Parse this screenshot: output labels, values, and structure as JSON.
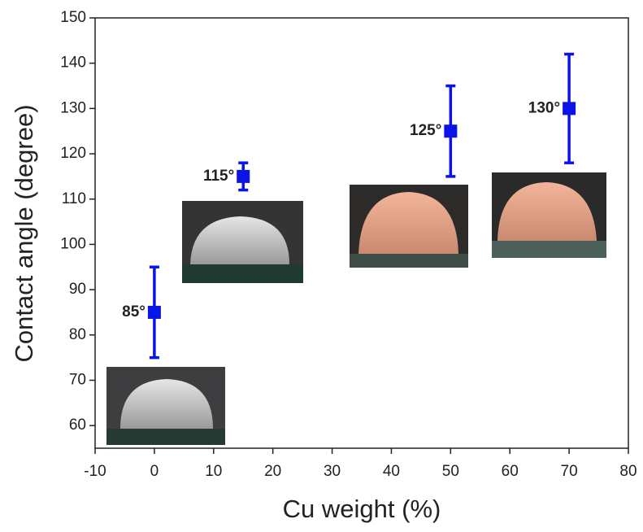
{
  "chart_data": {
    "type": "scatter",
    "x_label": "Cu weight (%)",
    "y_label": "Contact angle (degree)",
    "x": [
      0,
      15,
      50,
      70
    ],
    "series": [
      {
        "color": "#0a14e6",
        "values": [
          85,
          115,
          125,
          130
        ],
        "errors": [
          10,
          3,
          10,
          12
        ],
        "value_labels": [
          "85°",
          "115°",
          "125°",
          "130°"
        ]
      }
    ],
    "xlim": [
      -10,
      80
    ],
    "xticks": [
      -10,
      0,
      10,
      20,
      30,
      40,
      50,
      60,
      70,
      80
    ],
    "ylim": [
      55,
      150
    ],
    "yticks": [
      60,
      70,
      80,
      90,
      100,
      110,
      120,
      130,
      140,
      150
    ],
    "grid": false
  }
}
